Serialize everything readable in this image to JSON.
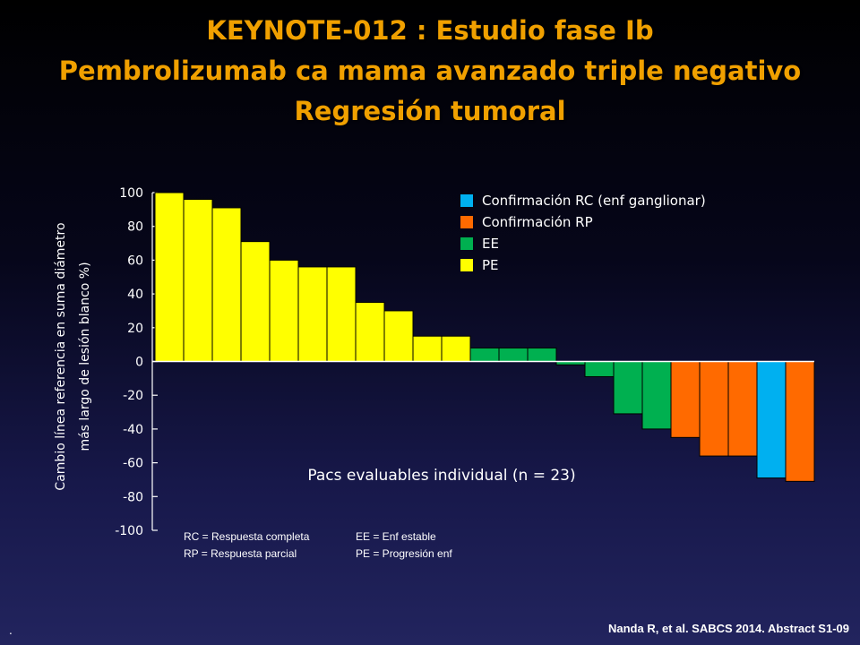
{
  "title": {
    "line1": "KEYNOTE-012 : Estudio fase Ib",
    "line2": "Pembrolizumab ca mama avanzado triple negativo",
    "line3": "Regresión tumoral"
  },
  "chart_data": {
    "type": "bar",
    "title": "",
    "ylabel_line1": "Cambio línea referencia en suma diámetro",
    "ylabel_line2": "más largo de lesión blanco %)",
    "xlabel": "Pacs evaluables individual (n = 23)",
    "ylim": [
      -100,
      100
    ],
    "y_ticks": [
      "100",
      "80",
      "60",
      "40",
      "20",
      "0",
      "-20",
      "-40",
      "-60",
      "-80",
      "-100"
    ],
    "y_tick_values": [
      100,
      80,
      60,
      40,
      20,
      0,
      -20,
      -40,
      -60,
      -80,
      -100
    ],
    "values": [
      100,
      96,
      91,
      71,
      60,
      56,
      56,
      35,
      30,
      15,
      15,
      8,
      8,
      8,
      -2,
      -9,
      -31,
      -40,
      -45,
      -56,
      -56,
      -69,
      -71
    ],
    "categories_response": [
      "PE",
      "PE",
      "PE",
      "PE",
      "PE",
      "PE",
      "PE",
      "PE",
      "PE",
      "PE",
      "PE",
      "EE",
      "EE",
      "EE",
      "EE",
      "EE",
      "EE",
      "EE",
      "RP",
      "RP",
      "RP",
      "RC",
      "RP"
    ],
    "legend_position": "top-right",
    "legend": [
      {
        "key": "RC",
        "label": "Confirmación RC (enf ganglionar)",
        "color": "#00b0f0"
      },
      {
        "key": "RP",
        "label": "Confirmación RP",
        "color": "#ff6a00"
      },
      {
        "key": "EE",
        "label": "EE",
        "color": "#00b050"
      },
      {
        "key": "PE",
        "label": "PE",
        "color": "#ffff00"
      }
    ],
    "footnotes": [
      "RC = Respuesta completa",
      "RP = Respuesta parcial",
      "EE =  Enf estable",
      "PE = Progresión enf"
    ]
  },
  "footer": {
    "left": ".",
    "citation": "Nanda R, et al. SABCS 2014. Abstract S1-09"
  }
}
